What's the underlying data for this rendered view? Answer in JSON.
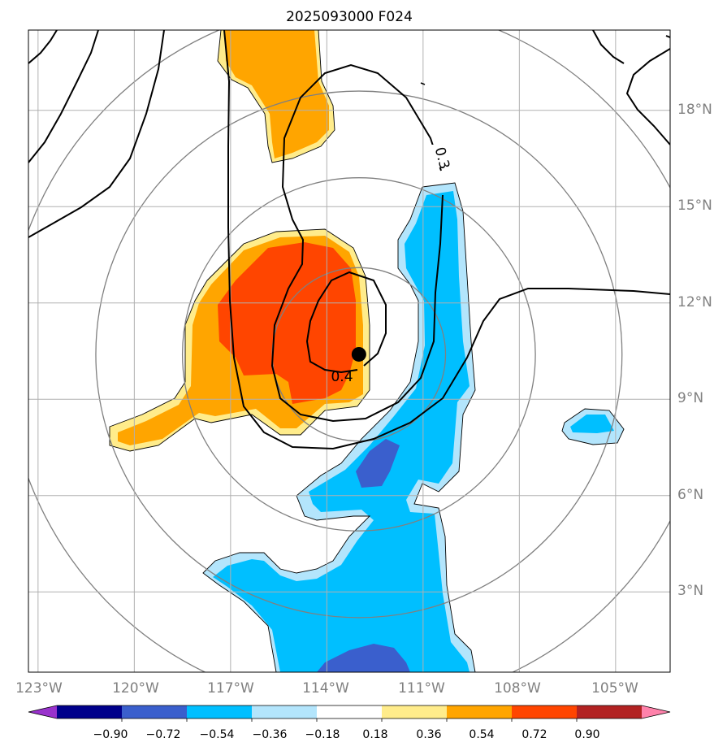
{
  "chart_data": {
    "type": "contour-map",
    "title": "2025093000 F024",
    "x_ticks": [
      "123°W",
      "120°W",
      "117°W",
      "114°W",
      "111°W",
      "108°W",
      "105°W"
    ],
    "y_ticks": [
      "18°N",
      "15°N",
      "12°N",
      "9°N",
      "6°N",
      "3°N"
    ],
    "lon_range": [
      -123.3,
      -103.3
    ],
    "lat_range": [
      0.5,
      20.5
    ],
    "center": {
      "lon": -113.0,
      "lat": 10.4
    },
    "range_ring_radii_deg": [
      2.7,
      5.5,
      8.2,
      11.0
    ],
    "contour_labels": [
      "0.3",
      "0.4"
    ],
    "colorbar": {
      "tick_labels": [
        "−0.90",
        "−0.72",
        "−0.54",
        "−0.36",
        "−0.18",
        "0.18",
        "0.36",
        "0.54",
        "0.72",
        "0.90"
      ],
      "levels": [
        -0.9,
        -0.72,
        -0.54,
        -0.36,
        -0.18,
        0.18,
        0.36,
        0.54,
        0.72,
        0.9
      ],
      "colors": [
        "#9932cc",
        "#00008b",
        "#3a5fcd",
        "#00bfff",
        "#b3e5fc",
        "#ffffff",
        "#ffec8b",
        "#ffa500",
        "#ff4500",
        "#b22222",
        "#ff82ab"
      ],
      "extend": "both"
    },
    "grid": true
  }
}
